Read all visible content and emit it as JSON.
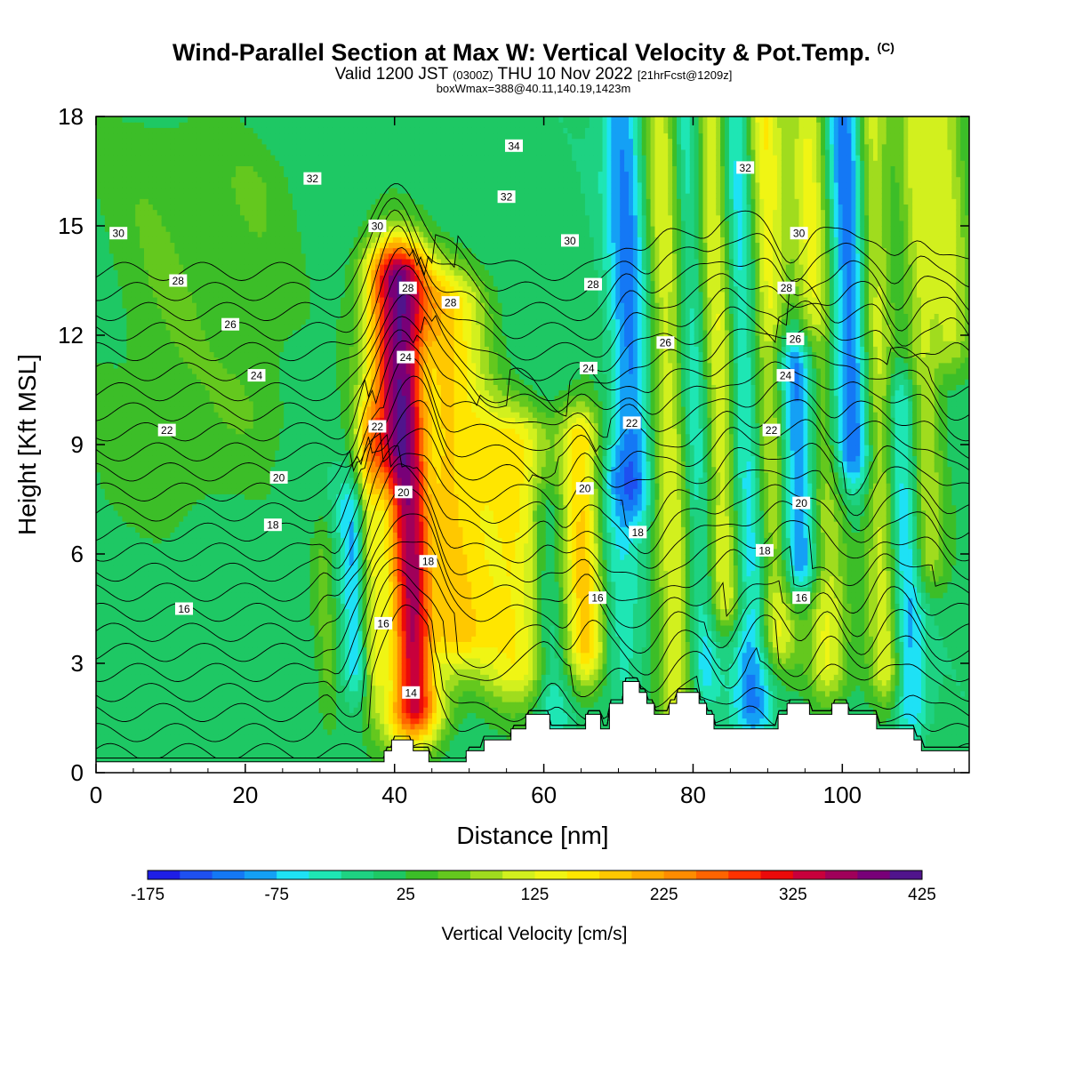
{
  "header": {
    "title_main": "Wind-Parallel Section at Max W: Vertical Velocity & Pot.Temp.",
    "title_mark": "(C)",
    "valid_prefix": "Valid 1200 JST",
    "valid_utc": "(0300Z)",
    "valid_date": "THU 10 Nov 2022",
    "valid_fcst": "[21hrFcst@1209z]",
    "box_info": "boxWmax=388@40.11,140.19,1423m"
  },
  "chart_data": {
    "type": "heatmap",
    "xlabel": "Distance [nm]",
    "ylabel": "Height [Kft MSL]",
    "xlim": [
      0,
      117
    ],
    "ylim": [
      0,
      18
    ],
    "x_ticks": [
      0,
      20,
      40,
      60,
      80,
      100
    ],
    "y_ticks": [
      0,
      3,
      6,
      9,
      12,
      15,
      18
    ],
    "colorbar": {
      "title": "Vertical Velocity [cm/s]",
      "levels": [
        -175,
        -150,
        -125,
        -100,
        -75,
        -50,
        -25,
        0,
        25,
        50,
        75,
        100,
        125,
        150,
        175,
        200,
        225,
        250,
        275,
        300,
        325,
        350,
        375,
        400,
        425
      ],
      "tick_labels": [
        "-175",
        "-75",
        "25",
        "125",
        "225",
        "325",
        "425"
      ],
      "colors": [
        "#1e1ee6",
        "#1e50f0",
        "#1478f5",
        "#14a0f5",
        "#1ee1f5",
        "#1ee6b4",
        "#1ed282",
        "#1ec864",
        "#3cbe28",
        "#64c81e",
        "#a0dc1e",
        "#d2f01e",
        "#f0f514",
        "#ffe600",
        "#ffc800",
        "#ffaa00",
        "#ff8c00",
        "#ff6400",
        "#ff3200",
        "#eb0a0a",
        "#c8003c",
        "#a0005a",
        "#780078",
        "#50148c"
      ]
    },
    "features": [
      {
        "x": 41,
        "w": 9,
        "z0": 2,
        "z1": 13.5,
        "peak": 380
      },
      {
        "x": 38.5,
        "w": 6,
        "z0": 2.5,
        "z1": 7,
        "peak": -150
      },
      {
        "x": 36.5,
        "w": 4,
        "z0": 3,
        "z1": 9,
        "peak": 110
      },
      {
        "x": 48,
        "w": 11,
        "z0": 4,
        "z1": 12.8,
        "peak": 145
      },
      {
        "x": 34,
        "w": 4,
        "z0": 3,
        "z1": 7,
        "peak": -100
      },
      {
        "x": 44.5,
        "w": 4,
        "z0": 3.5,
        "z1": 11,
        "peak": -80
      },
      {
        "x": 56,
        "w": 11,
        "z0": 3,
        "z1": 9,
        "peak": 135
      },
      {
        "x": 60,
        "w": 5,
        "z0": 2,
        "z1": 7,
        "peak": -80
      },
      {
        "x": 65,
        "w": 6,
        "z0": 3.5,
        "z1": 9,
        "peak": 175
      },
      {
        "x": 69,
        "w": 7,
        "z0": 3,
        "z1": 8,
        "peak": -60
      },
      {
        "x": 72,
        "w": 6,
        "z0": 8,
        "z1": 18,
        "peak": -120
      },
      {
        "x": 77,
        "w": 6,
        "z0": 2,
        "z1": 18,
        "peak": 115
      },
      {
        "x": 80.5,
        "w": 5,
        "z0": 3,
        "z1": 18,
        "peak": -90
      },
      {
        "x": 84,
        "w": 6,
        "z0": 5,
        "z1": 18,
        "peak": 150
      },
      {
        "x": 87,
        "w": 6,
        "z0": 2,
        "z1": 18,
        "peak": -130
      },
      {
        "x": 90.5,
        "w": 6,
        "z0": 4,
        "z1": 18,
        "peak": 150
      },
      {
        "x": 94,
        "w": 7,
        "z0": 6,
        "z1": 11,
        "peak": -175
      },
      {
        "x": 97,
        "w": 6,
        "z0": 3,
        "z1": 18,
        "peak": 125
      },
      {
        "x": 101.5,
        "w": 6,
        "z0": 9,
        "z1": 18,
        "peak": -140
      },
      {
        "x": 105,
        "w": 5,
        "z0": 3,
        "z1": 18,
        "peak": 115
      },
      {
        "x": 108,
        "w": 5,
        "z0": 2,
        "z1": 10,
        "peak": -100
      },
      {
        "x": 111,
        "w": 5,
        "z0": 6,
        "z1": 18,
        "peak": 90
      },
      {
        "x": 115,
        "w": 6,
        "z0": 12,
        "z1": 18,
        "peak": 95
      },
      {
        "x": 30,
        "w": 3,
        "z0": 2,
        "z1": 6,
        "peak": 40
      },
      {
        "x": 10,
        "w": 20,
        "z0": 8,
        "z1": 17,
        "peak": 35
      },
      {
        "x": 22,
        "w": 12,
        "z0": 10,
        "z1": 16,
        "peak": 30
      }
    ],
    "terrain": [
      [
        0,
        0.3
      ],
      [
        38.6,
        0.3
      ],
      [
        38.6,
        0.6
      ],
      [
        39.6,
        0.6
      ],
      [
        39.6,
        0.9
      ],
      [
        42.5,
        0.9
      ],
      [
        42.5,
        0.6
      ],
      [
        44.6,
        0.6
      ],
      [
        44.6,
        0.3
      ],
      [
        49.6,
        0.3
      ],
      [
        49.6,
        0.6
      ],
      [
        52,
        0.6
      ],
      [
        52,
        0.9
      ],
      [
        55.6,
        0.9
      ],
      [
        55.6,
        1.2
      ],
      [
        57.6,
        1.2
      ],
      [
        57.6,
        1.6
      ],
      [
        60.8,
        1.6
      ],
      [
        60.8,
        1.2
      ],
      [
        65.6,
        1.2
      ],
      [
        65.6,
        1.6
      ],
      [
        67.6,
        1.6
      ],
      [
        67.6,
        1.2
      ],
      [
        68.8,
        1.2
      ],
      [
        68.8,
        1.9
      ],
      [
        70.6,
        1.9
      ],
      [
        70.6,
        2.5
      ],
      [
        72.8,
        2.5
      ],
      [
        72.8,
        2.2
      ],
      [
        73.8,
        2.2
      ],
      [
        73.8,
        1.9
      ],
      [
        74.8,
        1.9
      ],
      [
        74.8,
        1.6
      ],
      [
        76.8,
        1.6
      ],
      [
        76.8,
        1.9
      ],
      [
        77.8,
        1.9
      ],
      [
        77.8,
        2.2
      ],
      [
        80.8,
        2.2
      ],
      [
        80.8,
        1.9
      ],
      [
        81.8,
        1.9
      ],
      [
        81.8,
        1.6
      ],
      [
        82.8,
        1.6
      ],
      [
        82.8,
        1.2
      ],
      [
        91.4,
        1.2
      ],
      [
        91.4,
        1.6
      ],
      [
        92.6,
        1.6
      ],
      [
        92.6,
        1.9
      ],
      [
        95.6,
        1.9
      ],
      [
        95.6,
        1.6
      ],
      [
        98.6,
        1.6
      ],
      [
        98.6,
        1.9
      ],
      [
        100.8,
        1.9
      ],
      [
        100.8,
        1.6
      ],
      [
        104.6,
        1.6
      ],
      [
        104.6,
        1.2
      ],
      [
        109.6,
        1.2
      ],
      [
        109.6,
        0.9
      ],
      [
        110.6,
        0.9
      ],
      [
        110.6,
        0.6
      ],
      [
        117,
        0.6
      ]
    ],
    "isentropes": [
      10,
      11,
      12,
      13,
      14,
      15,
      16,
      17,
      18,
      19,
      20,
      21,
      22,
      23,
      24,
      25,
      26,
      27,
      28,
      29,
      30,
      31,
      32,
      33,
      34,
      35,
      36,
      37
    ],
    "isentrope_labels": [
      {
        "text": "30",
        "x": 3,
        "y": 14.8
      },
      {
        "text": "28",
        "x": 11,
        "y": 13.5
      },
      {
        "text": "26",
        "x": 18,
        "y": 12.3
      },
      {
        "text": "24",
        "x": 21.5,
        "y": 10.9
      },
      {
        "text": "22",
        "x": 9.5,
        "y": 9.4
      },
      {
        "text": "20",
        "x": 24.5,
        "y": 8.1
      },
      {
        "text": "18",
        "x": 23.7,
        "y": 6.8
      },
      {
        "text": "16",
        "x": 11.8,
        "y": 4.5
      },
      {
        "text": "32",
        "x": 29,
        "y": 16.3
      },
      {
        "text": "30",
        "x": 37.7,
        "y": 15.0
      },
      {
        "text": "28",
        "x": 41.8,
        "y": 13.3
      },
      {
        "text": "28",
        "x": 47.5,
        "y": 12.9
      },
      {
        "text": "24",
        "x": 41.5,
        "y": 11.4
      },
      {
        "text": "22",
        "x": 37.7,
        "y": 9.5
      },
      {
        "text": "20",
        "x": 41.2,
        "y": 7.7
      },
      {
        "text": "18",
        "x": 44.5,
        "y": 5.8
      },
      {
        "text": "16",
        "x": 38.5,
        "y": 4.1
      },
      {
        "text": "14",
        "x": 42.2,
        "y": 2.2
      },
      {
        "text": "34",
        "x": 56,
        "y": 17.2
      },
      {
        "text": "32",
        "x": 55,
        "y": 15.8
      },
      {
        "text": "30",
        "x": 63.5,
        "y": 14.6
      },
      {
        "text": "28",
        "x": 66.6,
        "y": 13.4
      },
      {
        "text": "24",
        "x": 66,
        "y": 11.1
      },
      {
        "text": "22",
        "x": 71.8,
        "y": 9.6
      },
      {
        "text": "20",
        "x": 65.5,
        "y": 7.8
      },
      {
        "text": "18",
        "x": 72.6,
        "y": 6.6
      },
      {
        "text": "16",
        "x": 67.2,
        "y": 4.8
      },
      {
        "text": "32",
        "x": 87,
        "y": 16.6
      },
      {
        "text": "30",
        "x": 94.2,
        "y": 14.8
      },
      {
        "text": "28",
        "x": 92.5,
        "y": 13.3
      },
      {
        "text": "26",
        "x": 76.3,
        "y": 11.8
      },
      {
        "text": "26",
        "x": 93.7,
        "y": 11.9
      },
      {
        "text": "24",
        "x": 92.4,
        "y": 10.9
      },
      {
        "text": "22",
        "x": 90.5,
        "y": 9.4
      },
      {
        "text": "20",
        "x": 94.5,
        "y": 7.4
      },
      {
        "text": "18",
        "x": 89.6,
        "y": 6.1
      },
      {
        "text": "16",
        "x": 94.5,
        "y": 4.8
      }
    ]
  }
}
